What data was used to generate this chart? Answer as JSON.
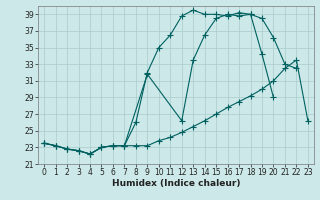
{
  "xlabel": "Humidex (Indice chaleur)",
  "bg_color": "#cce8e8",
  "grid_color": "#aacccc",
  "line_color": "#006060",
  "xlim": [
    -0.5,
    23.5
  ],
  "ylim": [
    21,
    40
  ],
  "xticks": [
    0,
    1,
    2,
    3,
    4,
    5,
    6,
    7,
    8,
    9,
    10,
    11,
    12,
    13,
    14,
    15,
    16,
    17,
    18,
    19,
    20,
    21,
    22,
    23
  ],
  "yticks": [
    21,
    23,
    25,
    27,
    29,
    31,
    33,
    35,
    37,
    39
  ],
  "line1_x": [
    0,
    1,
    2,
    3,
    4,
    5,
    6,
    7,
    8,
    9,
    10,
    11,
    12,
    13,
    14,
    15,
    16,
    17,
    18,
    19,
    20,
    21,
    22
  ],
  "line1_y": [
    23.5,
    23.2,
    22.8,
    22.6,
    22.2,
    23.0,
    23.2,
    23.2,
    26.0,
    32.0,
    35.0,
    36.5,
    38.8,
    39.5,
    39.0,
    39.0,
    38.8,
    39.2,
    39.0,
    38.5,
    36.2,
    33.0,
    32.5
  ],
  "line2_x": [
    0,
    1,
    2,
    3,
    4,
    5,
    6,
    7,
    9,
    12,
    13,
    14,
    15,
    16,
    17,
    18,
    19,
    20
  ],
  "line2_y": [
    23.5,
    23.2,
    22.8,
    22.6,
    22.2,
    23.0,
    23.2,
    23.2,
    31.8,
    26.2,
    33.5,
    36.5,
    38.5,
    39.0,
    38.8,
    39.0,
    34.2,
    29.0
  ],
  "line3_x": [
    0,
    1,
    2,
    3,
    4,
    5,
    6,
    7,
    8,
    9,
    10,
    11,
    12,
    13,
    14,
    15,
    16,
    17,
    18,
    19,
    20,
    21,
    22,
    23
  ],
  "line3_y": [
    23.5,
    23.2,
    22.8,
    22.6,
    22.2,
    23.0,
    23.2,
    23.2,
    23.2,
    23.2,
    23.8,
    24.2,
    24.8,
    25.5,
    26.2,
    27.0,
    27.8,
    28.5,
    29.2,
    30.0,
    31.0,
    32.5,
    33.5,
    26.2
  ],
  "tick_fontsize": 5.5,
  "xlabel_fontsize": 6.5,
  "lw": 0.8,
  "ms": 2.5
}
